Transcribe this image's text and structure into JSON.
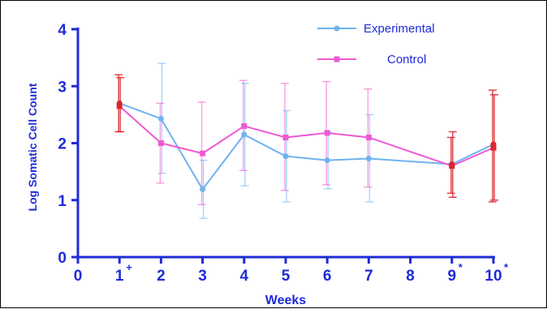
{
  "chart_data": {
    "type": "line",
    "xlabel": "Weeks",
    "ylabel": "Log Somatic Cell Count",
    "xlim": [
      0,
      10
    ],
    "ylim": [
      0,
      4
    ],
    "x_ticks": [
      {
        "value": 0,
        "label": "0",
        "sup": ""
      },
      {
        "value": 1,
        "label": "1",
        "sup": "+"
      },
      {
        "value": 2,
        "label": "2",
        "sup": ""
      },
      {
        "value": 3,
        "label": "3",
        "sup": ""
      },
      {
        "value": 4,
        "label": "4",
        "sup": ""
      },
      {
        "value": 5,
        "label": "5",
        "sup": ""
      },
      {
        "value": 6,
        "label": "6",
        "sup": ""
      },
      {
        "value": 7,
        "label": "7",
        "sup": ""
      },
      {
        "value": 8,
        "label": "8",
        "sup": ""
      },
      {
        "value": 9,
        "label": "9",
        "sup": "*"
      },
      {
        "value": 10,
        "label": "10",
        "sup": "*"
      }
    ],
    "y_ticks": [
      {
        "value": 0,
        "label": "0"
      },
      {
        "value": 1,
        "label": "1"
      },
      {
        "value": 2,
        "label": "2"
      },
      {
        "value": 3,
        "label": "3"
      },
      {
        "value": 4,
        "label": "4"
      }
    ],
    "grid": false,
    "legend": "top-right",
    "series": [
      {
        "name": "Experimental",
        "color": "#6fb3f0",
        "x": [
          1,
          2,
          3,
          4,
          5,
          6,
          7,
          9,
          10
        ],
        "y": [
          2.7,
          2.43,
          1.19,
          2.15,
          1.77,
          1.7,
          1.73,
          1.63,
          1.98
        ],
        "err_high": [
          3.15,
          3.4,
          1.7,
          3.05,
          2.57,
          2.2,
          2.5,
          2.2,
          2.85
        ],
        "err_low": [
          2.2,
          1.47,
          0.68,
          1.25,
          0.97,
          1.2,
          0.97,
          1.05,
          1.0
        ]
      },
      {
        "name": "Control",
        "color": "#ee5ad3",
        "x": [
          1,
          2,
          3,
          4,
          5,
          6,
          7,
          9,
          10
        ],
        "y": [
          2.65,
          2.0,
          1.82,
          2.3,
          2.1,
          2.18,
          2.1,
          1.6,
          1.92
        ],
        "err_high": [
          3.2,
          2.7,
          2.72,
          3.1,
          3.05,
          3.08,
          2.95,
          2.1,
          2.93
        ],
        "err_low": [
          2.2,
          1.3,
          0.92,
          1.52,
          1.17,
          1.27,
          1.23,
          1.12,
          0.97
        ]
      }
    ],
    "highlight_color": "#d9262d",
    "highlight_x": [
      1,
      9,
      10
    ]
  }
}
